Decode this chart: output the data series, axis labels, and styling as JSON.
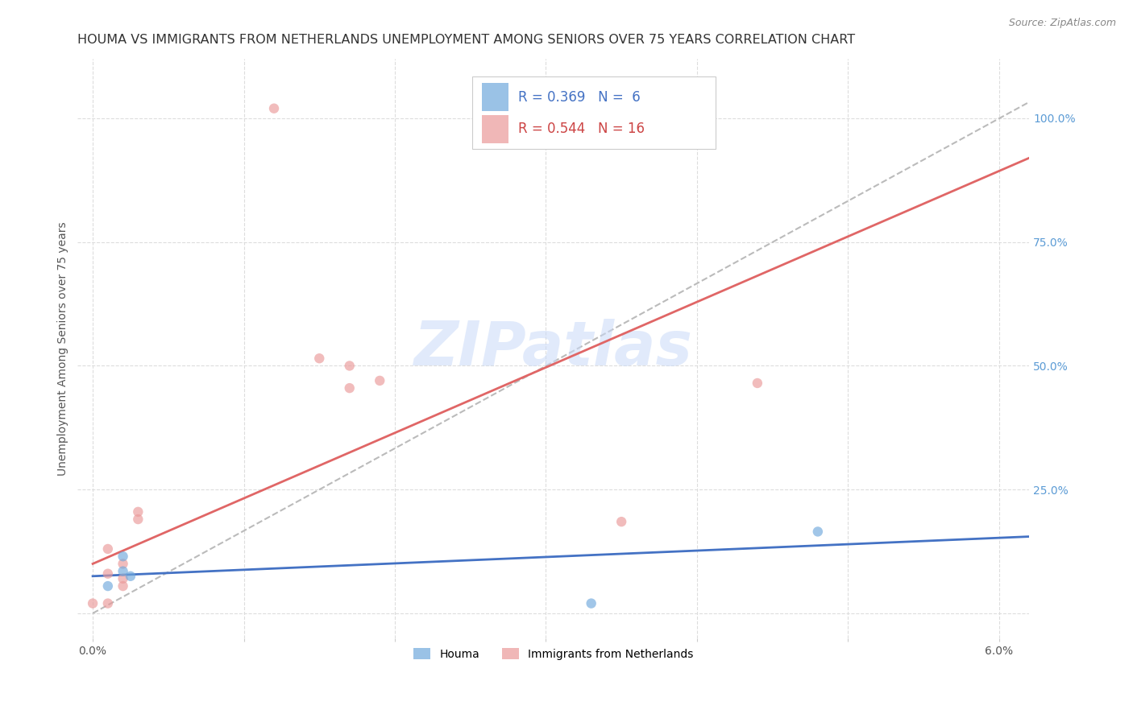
{
  "title": "HOUMA VS IMMIGRANTS FROM NETHERLANDS UNEMPLOYMENT AMONG SENIORS OVER 75 YEARS CORRELATION CHART",
  "source": "Source: ZipAtlas.com",
  "ylabel": "Unemployment Among Seniors over 75 years",
  "xlim": [
    -0.001,
    0.062
  ],
  "ylim": [
    -0.05,
    1.12
  ],
  "xticks": [
    0.0,
    0.01,
    0.02,
    0.03,
    0.04,
    0.05,
    0.06
  ],
  "xticklabels": [
    "0.0%",
    "",
    "",
    "",
    "",
    "",
    "6.0%"
  ],
  "yticks_right": [
    0.0,
    0.25,
    0.5,
    0.75,
    1.0
  ],
  "ytick_right_labels": [
    "",
    "25.0%",
    "50.0%",
    "75.0%",
    "100.0%"
  ],
  "houma_color": "#6fa8dc",
  "netherlands_color": "#ea9999",
  "houma_line_color": "#4472c4",
  "netherlands_line_color": "#e06666",
  "houma_R": 0.369,
  "houma_N": 6,
  "netherlands_R": 0.544,
  "netherlands_N": 16,
  "houma_points": [
    [
      0.001,
      0.055
    ],
    [
      0.002,
      0.115
    ],
    [
      0.002,
      0.085
    ],
    [
      0.0025,
      0.075
    ],
    [
      0.048,
      0.165
    ],
    [
      0.033,
      0.02
    ]
  ],
  "netherlands_points": [
    [
      0.0,
      0.02
    ],
    [
      0.001,
      0.02
    ],
    [
      0.001,
      0.13
    ],
    [
      0.001,
      0.08
    ],
    [
      0.002,
      0.07
    ],
    [
      0.002,
      0.055
    ],
    [
      0.002,
      0.1
    ],
    [
      0.003,
      0.19
    ],
    [
      0.003,
      0.205
    ],
    [
      0.015,
      0.515
    ],
    [
      0.017,
      0.5
    ],
    [
      0.017,
      0.455
    ],
    [
      0.019,
      0.47
    ],
    [
      0.035,
      0.185
    ],
    [
      0.044,
      0.465
    ],
    [
      0.012,
      1.02
    ]
  ],
  "houma_line_x": [
    0.0,
    0.062
  ],
  "houma_line_y": [
    0.075,
    0.155
  ],
  "netherlands_line_x": [
    0.0,
    0.062
  ],
  "netherlands_line_y": [
    0.1,
    0.92
  ],
  "diag_line_x": [
    0.0,
    0.062
  ],
  "diag_line_y": [
    0.0,
    1.033
  ],
  "watermark": "ZIPatlas",
  "watermark_color": "#c9daf8",
  "houma_point_size": 80,
  "netherlands_point_size": 80,
  "title_fontsize": 11.5,
  "axis_label_fontsize": 10,
  "legend_fontsize": 12
}
